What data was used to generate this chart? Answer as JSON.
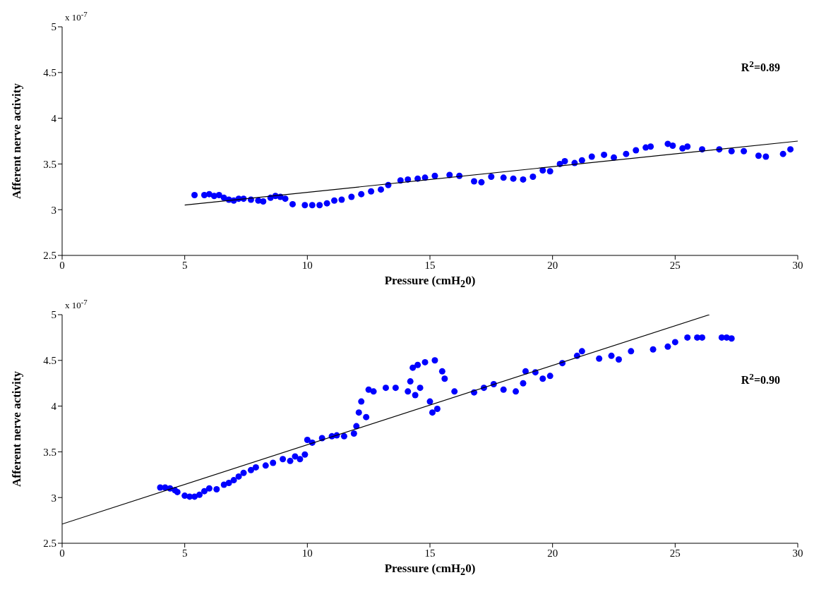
{
  "chart_data": [
    {
      "type": "scatter",
      "xlabel": "Pressure (cmH$_{2}$0)",
      "ylabel": "Afferent nerve activity",
      "annotations": [
        "R$^{2}$=0.89",
        "x 10$^{-7}$"
      ],
      "xlim": [
        0,
        30
      ],
      "xticks": [
        0,
        5,
        10,
        15,
        20,
        25,
        30
      ],
      "ylim": [
        2.5,
        5
      ],
      "yticks": [
        2.5,
        3,
        3.5,
        4,
        4.5,
        5
      ],
      "series": [
        {
          "type": "scatter",
          "color": "#0000ff",
          "marker": "circle",
          "x": [
            5.4,
            5.8,
            6.0,
            6.2,
            6.4,
            6.6,
            6.8,
            7.0,
            7.2,
            7.4,
            7.7,
            8.0,
            8.2,
            8.5,
            8.7,
            8.9,
            9.1,
            9.4,
            9.9,
            10.2,
            10.5,
            10.8,
            11.1,
            11.4,
            11.8,
            12.2,
            12.6,
            13.0,
            13.3,
            13.8,
            14.1,
            14.5,
            14.8,
            15.2,
            15.8,
            16.2,
            16.8,
            17.1,
            17.5,
            18.0,
            18.4,
            18.8,
            19.2,
            19.6,
            19.9,
            20.3,
            20.5,
            20.9,
            21.2,
            21.6,
            22.1,
            22.5,
            23.0,
            23.4,
            23.8,
            24.0,
            24.7,
            24.9,
            25.3,
            25.5,
            26.1,
            26.8,
            27.3,
            27.8,
            28.4,
            28.7,
            29.4,
            29.7
          ],
          "values": [
            3.16,
            3.16,
            3.17,
            3.15,
            3.16,
            3.13,
            3.11,
            3.1,
            3.12,
            3.12,
            3.11,
            3.1,
            3.09,
            3.13,
            3.15,
            3.14,
            3.12,
            3.06,
            3.05,
            3.05,
            3.05,
            3.07,
            3.1,
            3.11,
            3.14,
            3.17,
            3.2,
            3.22,
            3.27,
            3.32,
            3.33,
            3.34,
            3.35,
            3.37,
            3.38,
            3.37,
            3.31,
            3.3,
            3.36,
            3.35,
            3.34,
            3.33,
            3.36,
            3.43,
            3.42,
            3.5,
            3.53,
            3.51,
            3.54,
            3.58,
            3.6,
            3.57,
            3.61,
            3.65,
            3.68,
            3.69,
            3.72,
            3.7,
            3.67,
            3.69,
            3.66,
            3.66,
            3.64,
            3.64,
            3.59,
            3.58,
            3.61,
            3.66
          ]
        },
        {
          "type": "line",
          "color": "#000000",
          "marker": "none",
          "line_style": "solid",
          "x": [
            5,
            30
          ],
          "values": [
            3.05,
            3.75
          ]
        }
      ]
    },
    {
      "type": "scatter",
      "xlabel": "Pressure (cmH$_{2}$0)",
      "ylabel": "Afferent nerve activity",
      "annotations": [
        "R$^{2}$=0.90",
        "x 10$^{-7}$"
      ],
      "xlim": [
        0,
        30
      ],
      "xticks": [
        0,
        5,
        10,
        15,
        20,
        25,
        30
      ],
      "ylim": [
        2.5,
        5
      ],
      "yticks": [
        2.5,
        3,
        3.5,
        4,
        4.5,
        5
      ],
      "series": [
        {
          "type": "scatter",
          "color": "#0000ff",
          "marker": "circle",
          "x": [
            4.0,
            4.2,
            4.4,
            4.6,
            4.7,
            5.0,
            5.2,
            5.4,
            5.6,
            5.8,
            6.0,
            6.3,
            6.6,
            6.8,
            7.0,
            7.2,
            7.4,
            7.7,
            7.9,
            8.3,
            8.6,
            9.0,
            9.3,
            9.5,
            9.7,
            9.9,
            10.0,
            10.2,
            10.6,
            11.0,
            11.2,
            11.5,
            11.9,
            12.0,
            12.1,
            12.2,
            12.4,
            12.5,
            12.7,
            13.2,
            13.6,
            14.1,
            14.2,
            14.3,
            14.4,
            14.5,
            14.6,
            14.8,
            15.0,
            15.1,
            15.2,
            15.3,
            15.5,
            15.6,
            16.0,
            16.8,
            17.2,
            17.6,
            18.0,
            18.5,
            18.8,
            18.9,
            19.3,
            19.6,
            19.9,
            20.4,
            21.0,
            21.2,
            21.9,
            22.4,
            22.7,
            23.2,
            24.1,
            24.7,
            25.0,
            25.5,
            25.9,
            26.1,
            26.9,
            27.1,
            27.3
          ],
          "values": [
            3.11,
            3.11,
            3.1,
            3.08,
            3.06,
            3.02,
            3.01,
            3.01,
            3.03,
            3.07,
            3.1,
            3.09,
            3.14,
            3.16,
            3.19,
            3.23,
            3.27,
            3.3,
            3.33,
            3.35,
            3.38,
            3.42,
            3.4,
            3.45,
            3.42,
            3.47,
            3.63,
            3.6,
            3.65,
            3.67,
            3.68,
            3.67,
            3.7,
            3.78,
            3.93,
            4.05,
            3.88,
            4.18,
            4.16,
            4.2,
            4.2,
            4.16,
            4.27,
            4.42,
            4.12,
            4.45,
            4.2,
            4.48,
            4.05,
            3.93,
            4.5,
            3.97,
            4.38,
            4.3,
            4.16,
            4.15,
            4.2,
            4.24,
            4.18,
            4.16,
            4.25,
            4.38,
            4.37,
            4.3,
            4.33,
            4.47,
            4.55,
            4.6,
            4.52,
            4.55,
            4.51,
            4.6,
            4.62,
            4.65,
            4.7,
            4.75,
            4.75,
            4.75,
            4.75,
            4.75,
            4.74
          ]
        },
        {
          "type": "line",
          "color": "#000000",
          "marker": "none",
          "line_style": "solid",
          "x": [
            0,
            26.4
          ],
          "values": [
            2.71,
            5.0
          ]
        }
      ]
    }
  ]
}
